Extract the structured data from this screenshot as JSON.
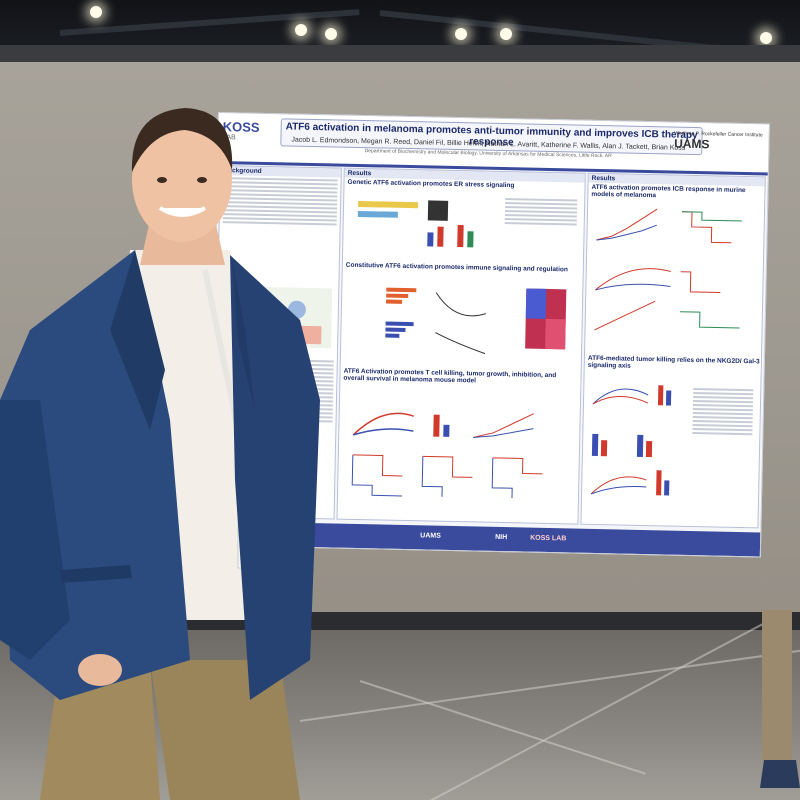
{
  "poster": {
    "logo_left": "KOSS",
    "logo_left_sub": "LAB",
    "title": "ATF6 activation in melanoma promotes anti-tumor immunity and improves ICB therapy response",
    "authors": "Jacob L. Edmondson, Megan R. Reed, Daniel Fil, Billie Heflin, Nathan L. Avaritt, Katherine F. Wallis, Alan J. Tackett, Brian Koss",
    "affiliation": "Department of Biochemistry and Molecular Biology, University of Arkansas for Medical Sciences, Little Rock, AR",
    "logo_right": "UAMS",
    "logo_right_sub": "Winthrop P. Rockefeller Cancer Institute",
    "sections": {
      "background": "Background",
      "results_left": "Results",
      "results_right": "Results",
      "genetic": "Genetic ATF6 activation promotes ER stress signaling",
      "constitutive": "Constitutive ATF6 activation promotes immune signaling and regulation",
      "tcell": "ATF6 Activation promotes T cell killing, tumor growth, inhibition, and overall survival in melanoma mouse model",
      "icb": "ATF6 activation promotes ICB response in murine models of melanoma",
      "nkg2d": "ATF6-mediated tumor killing relies on the NKG2D/ Gal-3 signaling axis"
    },
    "footer": {
      "uams": "UAMS",
      "nih": "NIH",
      "koss": "KOSS LAB"
    }
  },
  "colors": {
    "poster_accent": "#3a4a9c",
    "blazer": "#2b4a7e",
    "chart_red": "#d0392b",
    "chart_blue": "#3a4fb0"
  }
}
